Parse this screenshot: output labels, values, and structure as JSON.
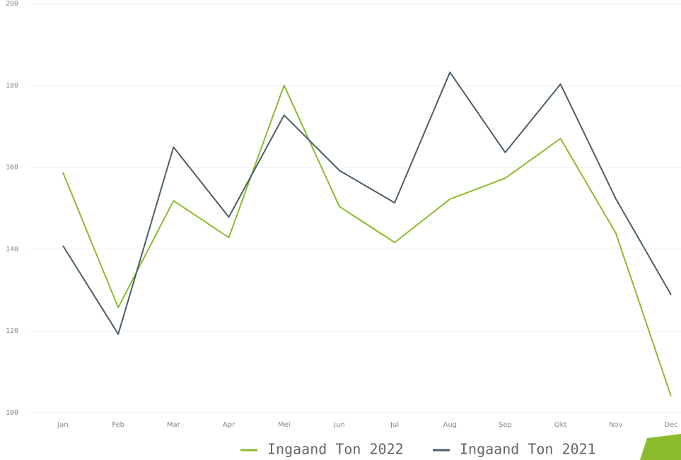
{
  "chart_data": {
    "type": "line",
    "categories": [
      "Jan",
      "Feb",
      "Mar",
      "Apr",
      "Mei",
      "Jun",
      "Jul",
      "Aug",
      "Sep",
      "Okt",
      "Nov",
      "Dec"
    ],
    "series": [
      {
        "name": "Ingaand Ton 2022",
        "color": "#8dbb2e",
        "values": [
          158.7,
          125.7,
          151.8,
          142.8,
          180,
          150.4,
          141.6,
          152.2,
          157.3,
          167,
          143.9,
          104
        ]
      },
      {
        "name": "Ingaand Ton 2021",
        "color": "#4a5e6b",
        "values": [
          140.8,
          119.2,
          164.9,
          147.8,
          172.7,
          159.2,
          151.3,
          183.2,
          163.6,
          180.3,
          152.3,
          128.8
        ]
      }
    ],
    "ylim": [
      100,
      200
    ],
    "yticks": [
      100,
      120,
      140,
      160,
      180,
      200
    ],
    "grid": true,
    "legend": "bottom"
  }
}
